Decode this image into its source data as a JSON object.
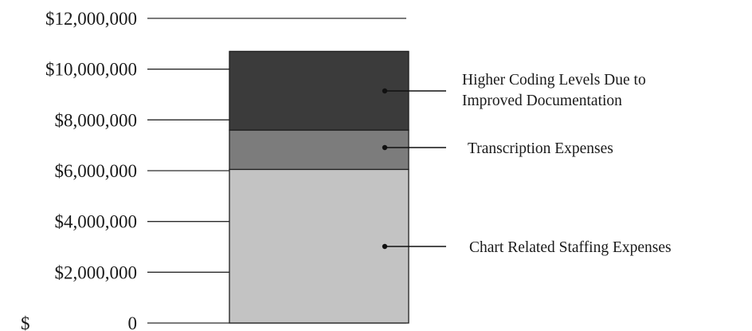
{
  "chart_data": {
    "type": "bar",
    "stacked": true,
    "categories": [
      ""
    ],
    "series": [
      {
        "name": "Chart Related Staffing Expenses",
        "values": [
          6050000
        ],
        "color": "#c3c3c3"
      },
      {
        "name": "Transcription Expenses",
        "values": [
          1550000
        ],
        "color": "#7c7c7c"
      },
      {
        "name": "Higher Coding Levels Due to Improved Documentation",
        "values": [
          3100000
        ],
        "color": "#3b3b3b"
      }
    ],
    "y_ticks": [
      {
        "value": 0,
        "label_prefix": "$",
        "label_value": "0"
      },
      {
        "value": 2000000,
        "label": "$2,000,000"
      },
      {
        "value": 4000000,
        "label": "$4,000,000"
      },
      {
        "value": 6000000,
        "label": "$6,000,000"
      },
      {
        "value": 8000000,
        "label": "$8,000,000"
      },
      {
        "value": 10000000,
        "label": "$10,000,000"
      },
      {
        "value": 12000000,
        "label": "$12,000,000"
      }
    ],
    "ylim": [
      0,
      12000000
    ],
    "grid": true,
    "legend": "annotations-right",
    "annotations": [
      {
        "series": 2,
        "lines": [
          "Higher Coding Levels Due to",
          "Improved Documentation"
        ]
      },
      {
        "series": 1,
        "lines": [
          "Transcription Expenses"
        ]
      },
      {
        "series": 0,
        "lines": [
          "Chart Related Staffing Expenses"
        ]
      }
    ]
  }
}
